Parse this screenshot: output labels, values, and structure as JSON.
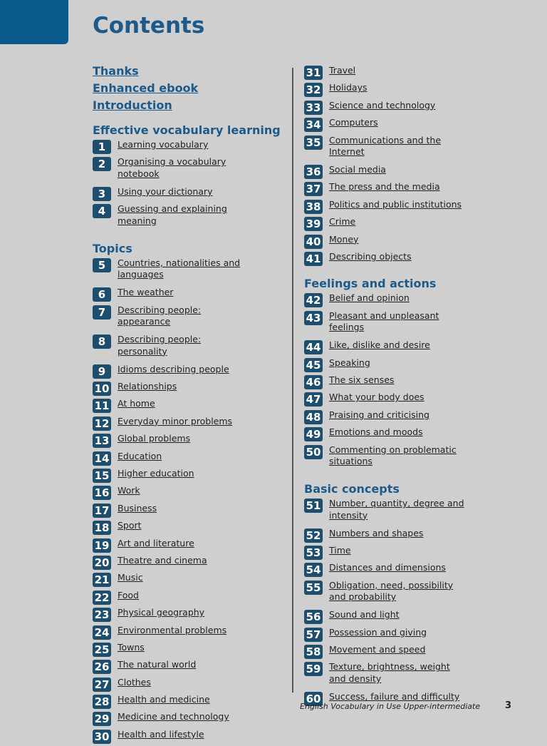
{
  "header": {
    "title": "Contents"
  },
  "front_matter": [
    "Thanks",
    "Enhanced ebook",
    "Introduction"
  ],
  "columns": [
    {
      "sections": [
        {
          "heading": "Effective vocabulary learning",
          "units": [
            {
              "number": 1,
              "title": "Learning vocabulary"
            },
            {
              "number": 2,
              "title": "Organising a vocabulary notebook"
            },
            {
              "number": 3,
              "title": "Using your dictionary"
            },
            {
              "number": 4,
              "title": "Guessing and explaining meaning"
            }
          ]
        },
        {
          "heading": "Topics",
          "units": [
            {
              "number": 5,
              "title": "Countries, nationalities and languages"
            },
            {
              "number": 6,
              "title": "The weather"
            },
            {
              "number": 7,
              "title": "Describing people: appearance"
            },
            {
              "number": 8,
              "title": "Describing people: personality"
            },
            {
              "number": 9,
              "title": "Idioms describing people"
            },
            {
              "number": 10,
              "title": "Relationships"
            },
            {
              "number": 11,
              "title": "At home"
            },
            {
              "number": 12,
              "title": "Everyday minor problems"
            },
            {
              "number": 13,
              "title": "Global problems"
            },
            {
              "number": 14,
              "title": "Education"
            },
            {
              "number": 15,
              "title": "Higher education"
            },
            {
              "number": 16,
              "title": "Work"
            },
            {
              "number": 17,
              "title": "Business"
            },
            {
              "number": 18,
              "title": "Sport"
            },
            {
              "number": 19,
              "title": "Art and literature"
            },
            {
              "number": 20,
              "title": "Theatre and cinema"
            },
            {
              "number": 21,
              "title": "Music"
            },
            {
              "number": 22,
              "title": "Food"
            },
            {
              "number": 23,
              "title": "Physical geography"
            },
            {
              "number": 24,
              "title": "Environmental problems"
            },
            {
              "number": 25,
              "title": "Towns"
            },
            {
              "number": 26,
              "title": "The natural world"
            },
            {
              "number": 27,
              "title": "Clothes"
            },
            {
              "number": 28,
              "title": "Health and medicine"
            },
            {
              "number": 29,
              "title": "Medicine and technology"
            },
            {
              "number": 30,
              "title": "Health and lifestyle"
            }
          ]
        }
      ]
    },
    {
      "sections": [
        {
          "units": [
            {
              "number": 31,
              "title": "Travel"
            },
            {
              "number": 32,
              "title": "Holidays"
            },
            {
              "number": 33,
              "title": "Science and technology"
            },
            {
              "number": 34,
              "title": "Computers"
            },
            {
              "number": 35,
              "title": "Communications and the Internet"
            },
            {
              "number": 36,
              "title": "Social media"
            },
            {
              "number": 37,
              "title": "The press and the media"
            },
            {
              "number": 38,
              "title": "Politics and public institutions"
            },
            {
              "number": 39,
              "title": "Crime"
            },
            {
              "number": 40,
              "title": "Money"
            },
            {
              "number": 41,
              "title": "Describing objects"
            }
          ]
        },
        {
          "heading": "Feelings and actions",
          "units": [
            {
              "number": 42,
              "title": "Belief and opinion"
            },
            {
              "number": 43,
              "title": "Pleasant and unpleasant feelings"
            },
            {
              "number": 44,
              "title": "Like, dislike and desire"
            },
            {
              "number": 45,
              "title": "Speaking"
            },
            {
              "number": 46,
              "title": "The six senses"
            },
            {
              "number": 47,
              "title": "What your body does"
            },
            {
              "number": 48,
              "title": "Praising and criticising"
            },
            {
              "number": 49,
              "title": "Emotions and moods"
            },
            {
              "number": 50,
              "title": "Commenting on problematic situations"
            }
          ]
        },
        {
          "heading": "Basic concepts",
          "units": [
            {
              "number": 51,
              "title": "Number, quantity, degree and intensity"
            },
            {
              "number": 52,
              "title": "Numbers and shapes"
            },
            {
              "number": 53,
              "title": "Time"
            },
            {
              "number": 54,
              "title": "Distances and dimensions"
            },
            {
              "number": 55,
              "title": "Obligation, need, possibility and probability"
            },
            {
              "number": 56,
              "title": "Sound and light"
            },
            {
              "number": 57,
              "title": "Possession and giving"
            },
            {
              "number": 58,
              "title": "Movement and speed"
            },
            {
              "number": 59,
              "title": "Texture, brightness, weight and density"
            },
            {
              "number": 60,
              "title": "Success, failure and difficulty"
            }
          ]
        }
      ]
    }
  ],
  "footer": {
    "book_title": "English Vocabulary in Use Upper-intermediate",
    "page_number": 3
  }
}
